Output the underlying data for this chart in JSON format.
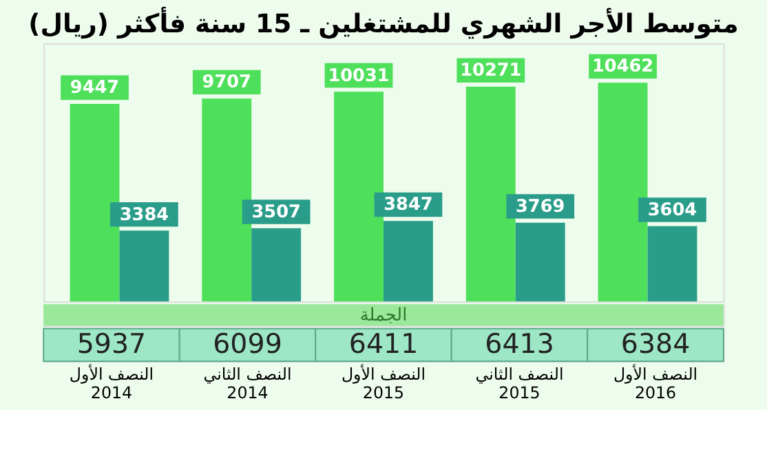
{
  "chart_data": {
    "type": "bar",
    "title": "متوسط الأجر الشهري للمشتغلين ـ 15 سنة فأكثر (ريال)",
    "categories": [
      "النصف الأول 2014",
      "النصف الثاني 2014",
      "النصف الأول 2015",
      "النصف الثاني 2015",
      "النصف الأول 2016"
    ],
    "series": [
      {
        "color": "#4ee05a",
        "values": [
          9447,
          9707,
          10031,
          10271,
          10462
        ]
      },
      {
        "color": "#2a9d8a",
        "values": [
          3384,
          3507,
          3847,
          3769,
          3604
        ]
      }
    ],
    "data_labels": true,
    "grid": false,
    "annotations": [
      "الجملة",
      "5937",
      "6099",
      "6411",
      "6413",
      "6384"
    ]
  }
}
